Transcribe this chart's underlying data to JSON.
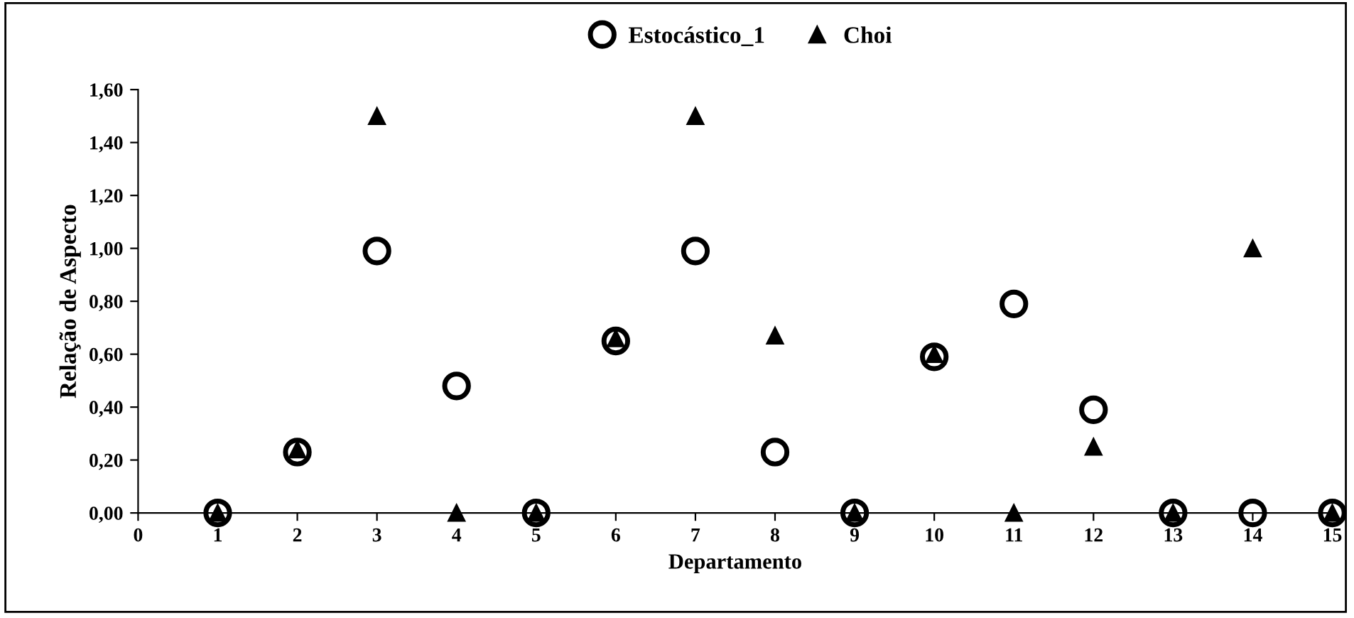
{
  "chart_data": {
    "type": "scatter",
    "xlabel": "Departamento",
    "ylabel": "Relação de Aspecto",
    "x": [
      1,
      2,
      3,
      4,
      5,
      6,
      7,
      8,
      9,
      10,
      11,
      12,
      13,
      14,
      15
    ],
    "series": [
      {
        "name": "Estocástico_1",
        "color": "#000000",
        "marker": "circle",
        "values": [
          0,
          0.23,
          0.99,
          0.48,
          0,
          0.65,
          0.99,
          0.23,
          0,
          0.59,
          0.79,
          0.39,
          0,
          0,
          0
        ]
      },
      {
        "name": "Choi",
        "color": "#000000",
        "marker": "triangle",
        "values": [
          0,
          0.24,
          1.5,
          0,
          0,
          0.66,
          1.5,
          0.67,
          0,
          0.6,
          0,
          0.25,
          0,
          1.0,
          0
        ]
      }
    ],
    "xlim": [
      0,
      15
    ],
    "xticks": [
      0,
      1,
      2,
      3,
      4,
      5,
      6,
      7,
      8,
      9,
      10,
      11,
      12,
      13,
      14,
      15
    ],
    "ylim": [
      0,
      1.6
    ],
    "yticks": [
      {
        "value": 0,
        "label": "0,00"
      },
      {
        "value": 0.2,
        "label": "0,20"
      },
      {
        "value": 0.4,
        "label": "0,40"
      },
      {
        "value": 0.6,
        "label": "0,60"
      },
      {
        "value": 0.8,
        "label": "0,80"
      },
      {
        "value": 1.0,
        "label": "1,00"
      },
      {
        "value": 1.2,
        "label": "1,20"
      },
      {
        "value": 1.4,
        "label": "1,40"
      },
      {
        "value": 1.6,
        "label": "1,60"
      }
    ],
    "grid": false,
    "legend": "top"
  }
}
